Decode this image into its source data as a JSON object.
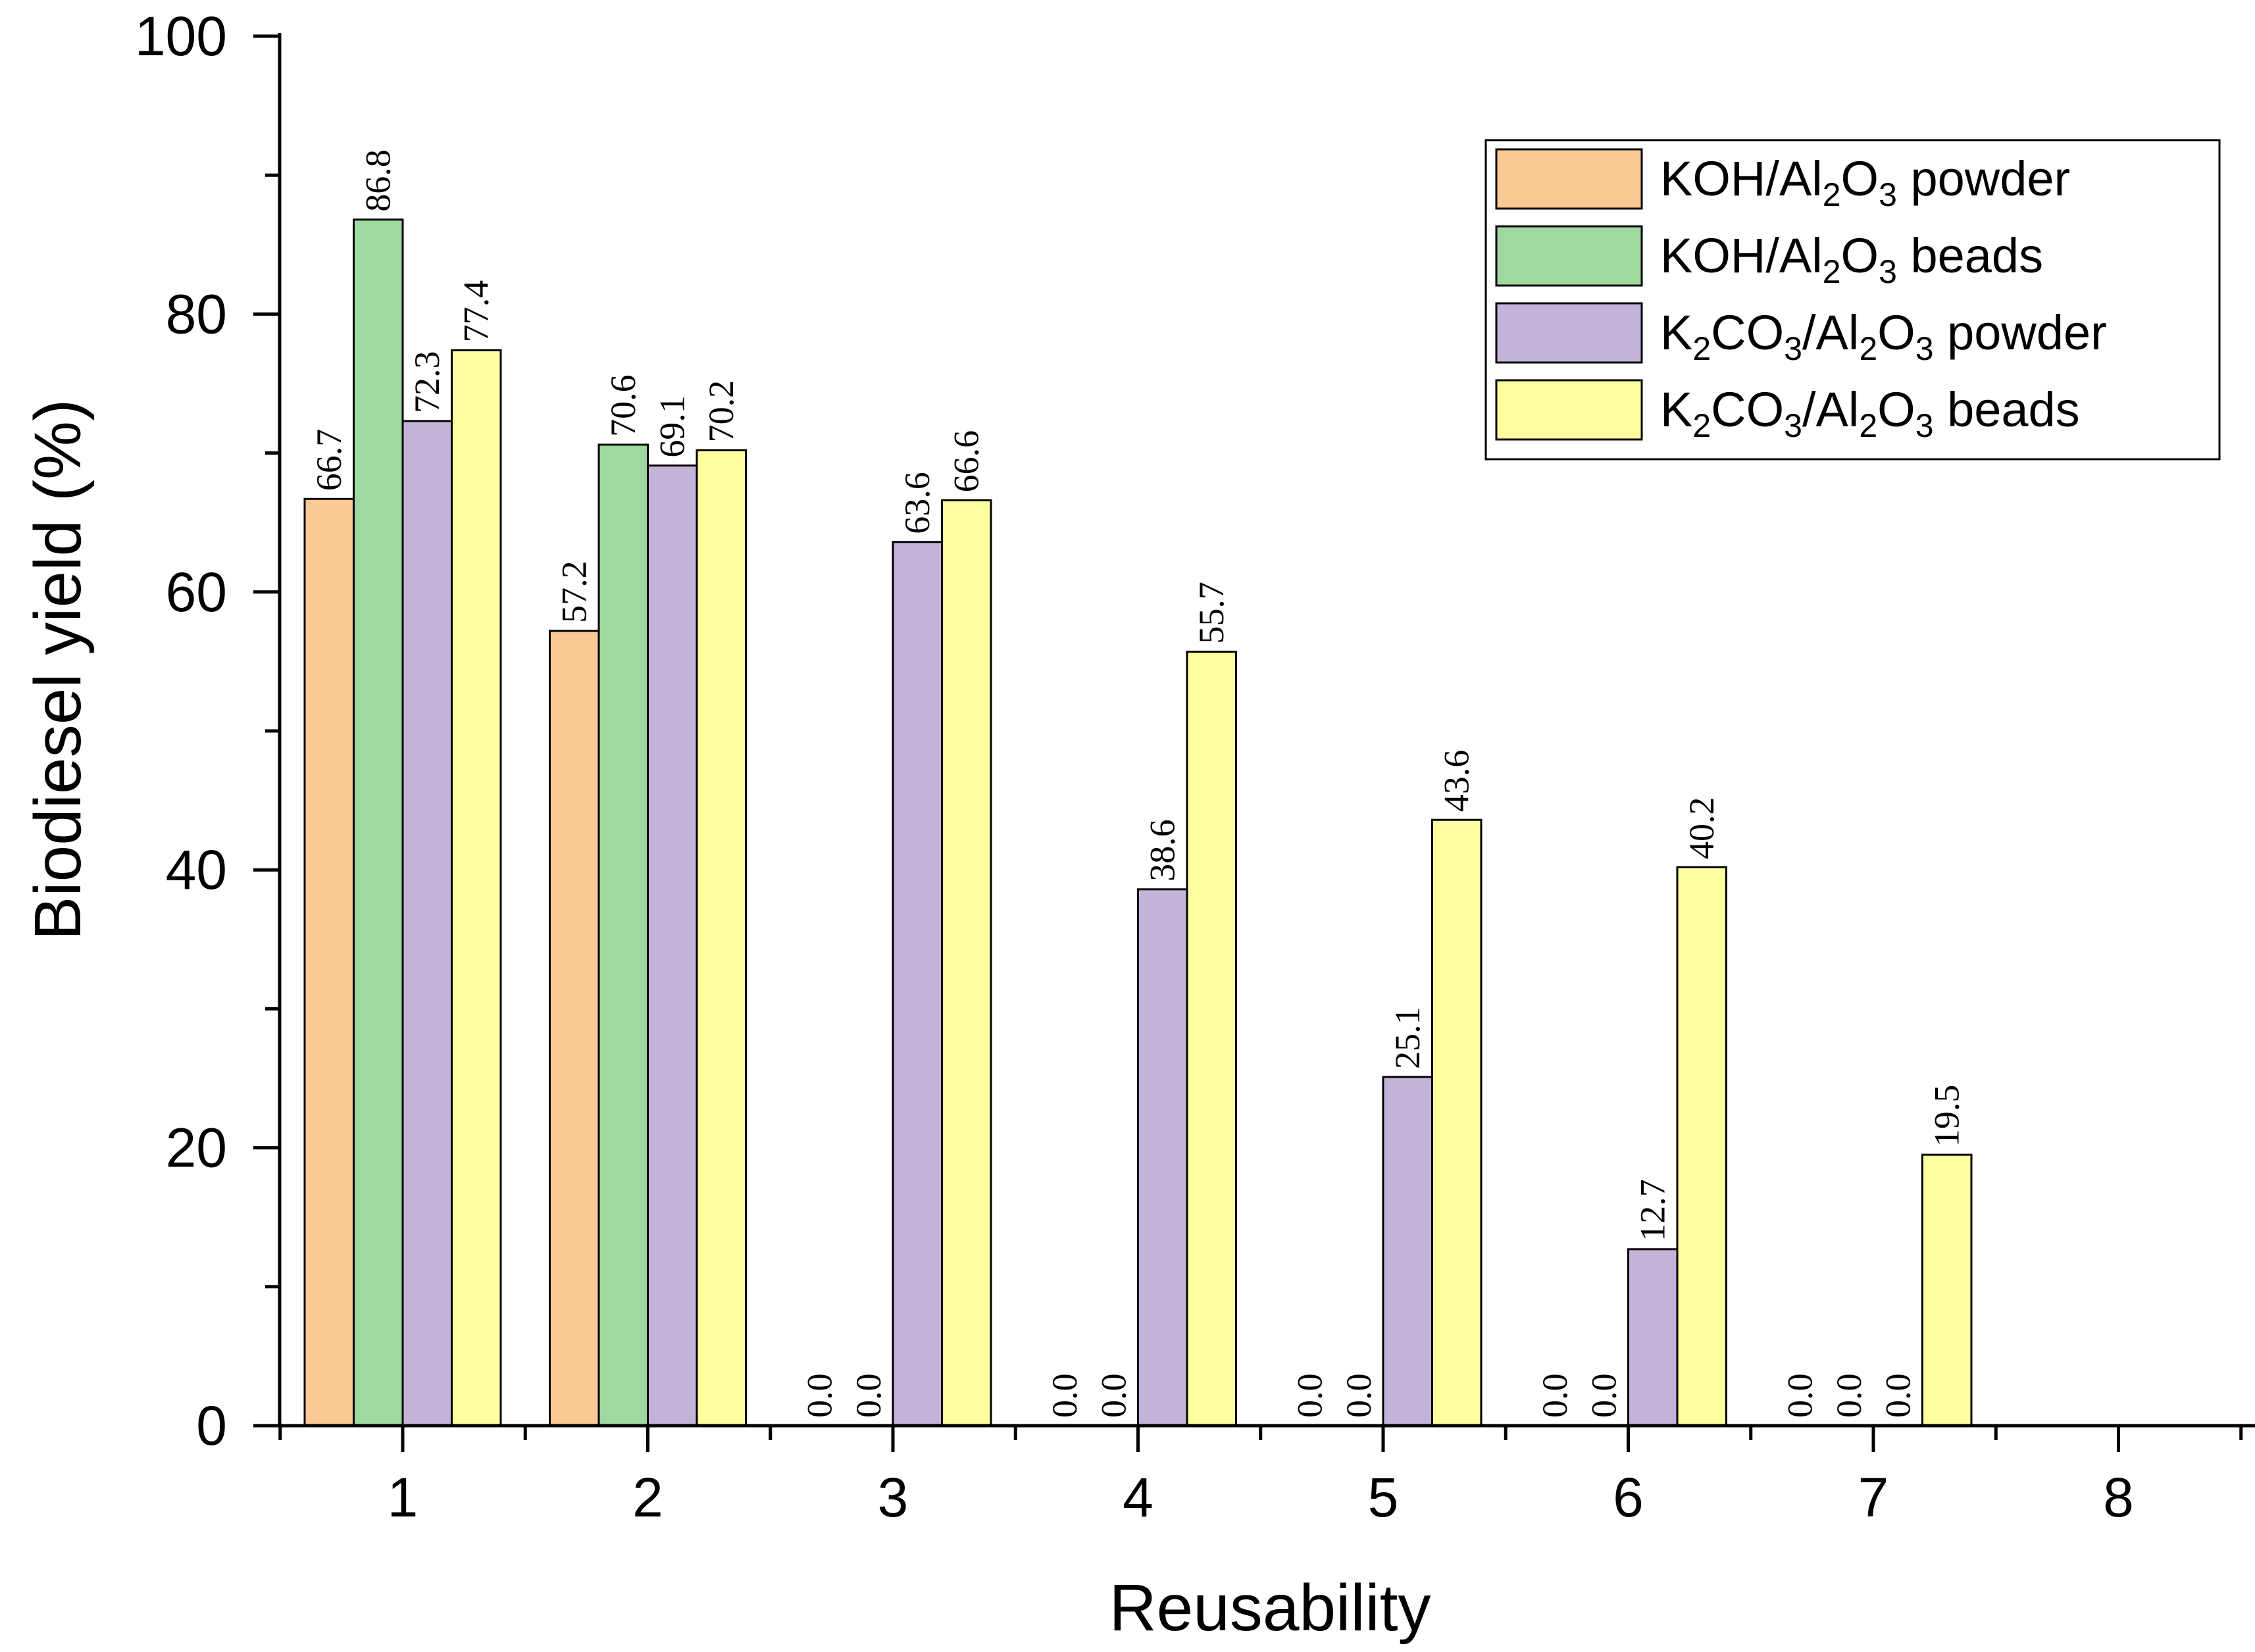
{
  "chart_data": {
    "type": "bar",
    "title": "",
    "xlabel": "Reusability",
    "ylabel": "Biodiesel yield (%)",
    "categories": [
      "1",
      "2",
      "3",
      "4",
      "5",
      "6",
      "7",
      "8"
    ],
    "ylim": [
      0,
      100
    ],
    "yticks": [
      0,
      20,
      40,
      60,
      80,
      100
    ],
    "grid": false,
    "legend_position": "top-right",
    "series": [
      {
        "name": "KOH/Al2O3 powder",
        "legend_parts": [
          [
            "KOH/Al",
            ""
          ],
          [
            "2",
            "sub"
          ],
          [
            "O",
            ""
          ],
          [
            "3",
            "sub"
          ],
          [
            " powder",
            ""
          ]
        ],
        "color": "#FCC995",
        "values": [
          66.7,
          57.2,
          0.0,
          0.0,
          0.0,
          0.0,
          0.0,
          null
        ],
        "labels": [
          "66.7",
          "57.2",
          "0.0",
          "0.0",
          "0.0",
          "0.0",
          "0.0",
          null
        ]
      },
      {
        "name": "KOH/Al2O3 beads",
        "legend_parts": [
          [
            "KOH/Al",
            ""
          ],
          [
            "2",
            "sub"
          ],
          [
            "O",
            ""
          ],
          [
            "3",
            "sub"
          ],
          [
            " beads",
            ""
          ]
        ],
        "color": "#9FD99F",
        "values": [
          86.8,
          70.6,
          0.0,
          0.0,
          0.0,
          0.0,
          0.0,
          null
        ],
        "labels": [
          "86.8",
          "70.6",
          "0.0",
          "0.0",
          "0.0",
          "0.0",
          "0.0",
          null
        ]
      },
      {
        "name": "K2CO3/Al2O3 powder",
        "legend_parts": [
          [
            "K",
            ""
          ],
          [
            "2",
            "sub"
          ],
          [
            "CO",
            ""
          ],
          [
            "3",
            "sub"
          ],
          [
            "/Al",
            ""
          ],
          [
            "2",
            "sub"
          ],
          [
            "O",
            ""
          ],
          [
            "3",
            "sub"
          ],
          [
            " powder",
            ""
          ]
        ],
        "color": "#C3B3D8",
        "values": [
          72.3,
          69.1,
          63.6,
          38.6,
          25.1,
          12.7,
          0.0,
          null
        ],
        "labels": [
          "72.3",
          "69.1",
          "63.6",
          "38.6",
          "25.1",
          "12.7",
          "0.0",
          null
        ]
      },
      {
        "name": "K2CO3/Al2O3 beads",
        "legend_parts": [
          [
            "K",
            ""
          ],
          [
            "2",
            "sub"
          ],
          [
            "CO",
            ""
          ],
          [
            "3",
            "sub"
          ],
          [
            "/Al",
            ""
          ],
          [
            "2",
            "sub"
          ],
          [
            "O",
            ""
          ],
          [
            "3",
            "sub"
          ],
          [
            " beads",
            ""
          ]
        ],
        "color": "#FFFFA0",
        "values": [
          77.4,
          70.2,
          66.6,
          55.7,
          43.6,
          40.2,
          19.5,
          null
        ],
        "labels": [
          "77.4",
          "70.2",
          "66.6",
          "55.7",
          "43.6",
          "40.2",
          "19.5",
          null
        ]
      }
    ]
  }
}
